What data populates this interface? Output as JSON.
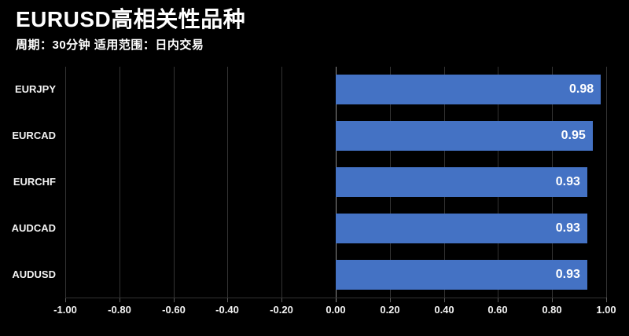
{
  "header": {
    "title": "EURUSD高相关性品种",
    "subtitle": "周期：30分钟 适用范围：日内交易"
  },
  "colors": {
    "background": "#000000",
    "bar": "#4472C4",
    "gridline": "#333333",
    "zero_line": "#8c8c8c",
    "tick": "#5a5a5a",
    "text": "#ffffff",
    "label_text": "#f2f2f2"
  },
  "chart_data": {
    "type": "bar",
    "orientation": "horizontal",
    "title": "EURUSD高相关性品种",
    "subtitle": "周期：30分钟 适用范围：日内交易",
    "categories": [
      "EURJPY",
      "EURCAD",
      "EURCHF",
      "AUDCAD",
      "AUDUSD"
    ],
    "values": [
      0.98,
      0.95,
      0.93,
      0.93,
      0.93
    ],
    "value_labels": [
      "0.98",
      "0.95",
      "0.93",
      "0.93",
      "0.93"
    ],
    "xlim": [
      -1.0,
      1.0
    ],
    "xticks": [
      -1.0,
      -0.8,
      -0.6,
      -0.4,
      -0.2,
      0.0,
      0.2,
      0.4,
      0.6,
      0.8,
      1.0
    ],
    "xtick_labels": [
      "-1.00",
      "-0.80",
      "-0.60",
      "-0.40",
      "-0.20",
      "0.00",
      "0.20",
      "0.40",
      "0.60",
      "0.80",
      "1.00"
    ],
    "grid": true,
    "legend": false,
    "xlabel": "",
    "ylabel": ""
  }
}
